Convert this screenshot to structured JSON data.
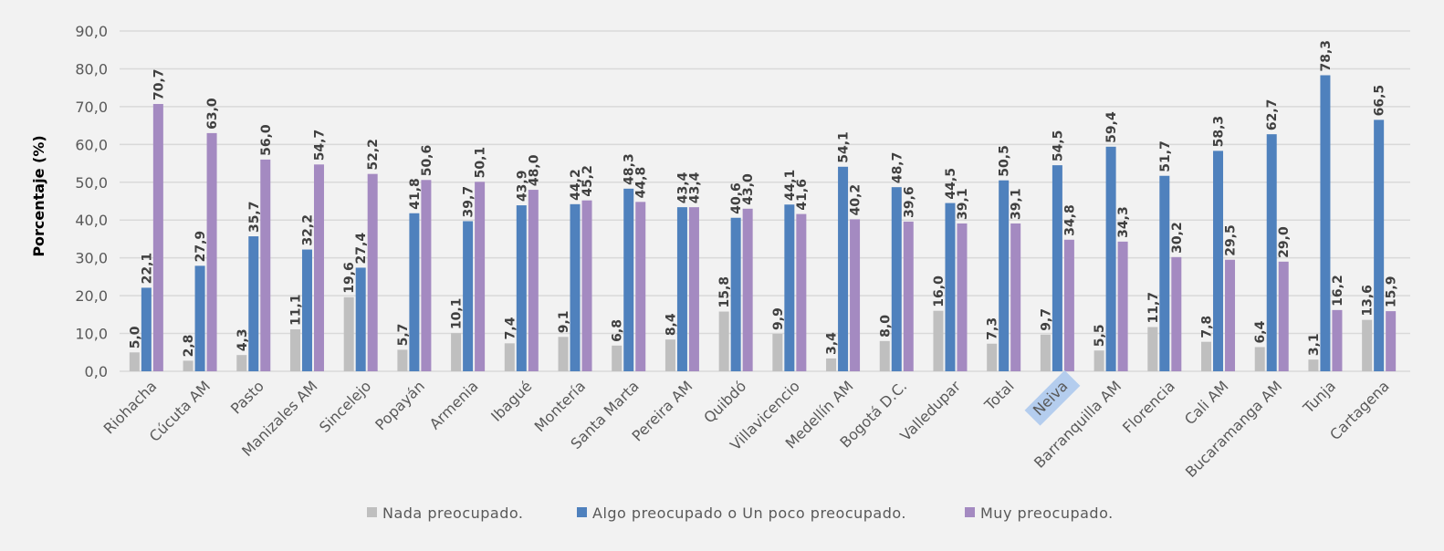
{
  "chart_data": {
    "type": "bar",
    "title": "",
    "xlabel": "",
    "ylabel": "Porcentaje (%)",
    "ylim": [
      0,
      90
    ],
    "yticks": [
      "0,0",
      "10,0",
      "20,0",
      "30,0",
      "40,0",
      "50,0",
      "60,0",
      "70,0",
      "80,0",
      "90,0"
    ],
    "grid": true,
    "legend_position": "bottom",
    "highlighted_category": "Neiva",
    "categories": [
      "Riohacha",
      "Cúcuta AM",
      "Pasto",
      "Manizales AM",
      "Sincelejo",
      "Popayán",
      "Armenia",
      "Ibagué",
      "Montería",
      "Santa Marta",
      "Pereira AM",
      "Quibdó",
      "Villavicencio",
      "Medellín AM",
      "Bogotá D.C.",
      "Valledupar",
      "Total",
      "Neiva",
      "Barranquilla AM",
      "Florencia",
      "Cali AM",
      "Bucaramanga AM",
      "Tunja",
      "Cartagena"
    ],
    "series": [
      {
        "name": "Nada preocupado.",
        "color": "#bfbfbf",
        "values": [
          5.0,
          2.8,
          4.3,
          11.1,
          19.6,
          5.7,
          10.1,
          7.4,
          9.1,
          6.8,
          8.4,
          15.8,
          9.9,
          3.4,
          8.0,
          16.0,
          7.3,
          9.7,
          5.5,
          11.7,
          7.8,
          6.4,
          3.1,
          13.6
        ]
      },
      {
        "name": "Algo preocupado o Un poco preocupado.",
        "color": "#4f81bd",
        "values": [
          22.1,
          27.9,
          35.7,
          32.2,
          27.4,
          41.8,
          39.7,
          43.9,
          44.2,
          48.3,
          43.4,
          40.6,
          44.1,
          54.1,
          48.7,
          44.5,
          50.5,
          54.5,
          59.4,
          51.7,
          58.3,
          62.7,
          78.3,
          66.5
        ]
      },
      {
        "name": "Muy preocupado.",
        "color": "#a48ac1",
        "values": [
          70.7,
          63.0,
          56.0,
          54.7,
          52.2,
          50.6,
          50.1,
          48.0,
          45.2,
          44.8,
          43.4,
          43.0,
          41.6,
          40.2,
          39.6,
          39.1,
          39.1,
          34.8,
          34.3,
          30.2,
          29.5,
          29.0,
          16.2,
          15.9
        ]
      }
    ]
  }
}
